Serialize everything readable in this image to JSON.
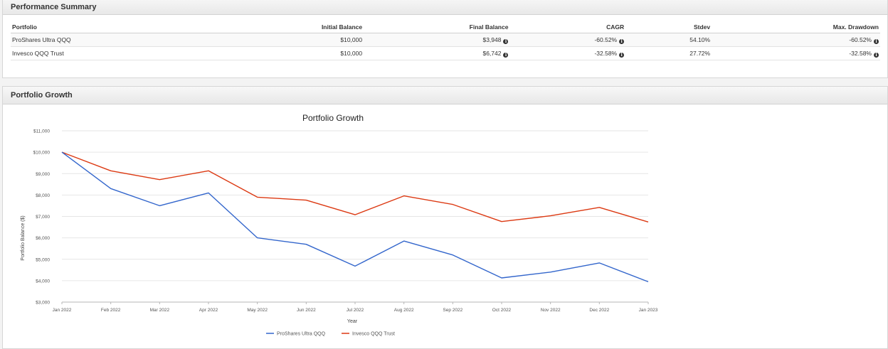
{
  "summary": {
    "title": "Performance Summary",
    "columns": [
      "Portfolio",
      "Initial Balance",
      "Final Balance",
      "CAGR",
      "Stdev",
      "Max. Drawdown"
    ],
    "rows": [
      {
        "portfolio": "ProShares Ultra QQQ",
        "initial": "$10,000",
        "final": "$3,948",
        "cagr": "-60.52%",
        "stdev": "54.10%",
        "maxdd": "-60.52%"
      },
      {
        "portfolio": "Invesco QQQ Trust",
        "initial": "$10,000",
        "final": "$6,742",
        "cagr": "-32.58%",
        "stdev": "27.72%",
        "maxdd": "-32.58%"
      }
    ]
  },
  "growth": {
    "panel_title": "Portfolio Growth"
  },
  "chart_data": {
    "type": "line",
    "title": "Portfolio Growth",
    "xlabel": "Year",
    "ylabel": "Portfolio Balance ($)",
    "categories": [
      "Jan 2022",
      "Feb 2022",
      "Mar 2022",
      "Apr 2022",
      "May 2022",
      "Jun 2022",
      "Jul 2022",
      "Aug 2022",
      "Sep 2022",
      "Oct 2022",
      "Nov 2022",
      "Dec 2022",
      "Jan 2023"
    ],
    "ylim": [
      3000,
      11000
    ],
    "yticks": [
      3000,
      4000,
      5000,
      6000,
      7000,
      8000,
      9000,
      10000,
      11000
    ],
    "ytick_labels": [
      "$3,000",
      "$4,000",
      "$5,000",
      "$6,000",
      "$7,000",
      "$8,000",
      "$9,000",
      "$10,000",
      "$11,000"
    ],
    "grid": true,
    "legend": "bottom",
    "series": [
      {
        "name": "ProShares Ultra QQQ",
        "color": "#3366cc",
        "values": [
          10000,
          8300,
          7500,
          8100,
          6000,
          5700,
          4680,
          5850,
          5200,
          4130,
          4400,
          4830,
          3948
        ]
      },
      {
        "name": "Invesco QQQ Trust",
        "color": "#dc3912",
        "values": [
          10000,
          9130,
          8720,
          9130,
          7900,
          7760,
          7080,
          7960,
          7560,
          6760,
          7030,
          7420,
          6742
        ]
      }
    ]
  }
}
